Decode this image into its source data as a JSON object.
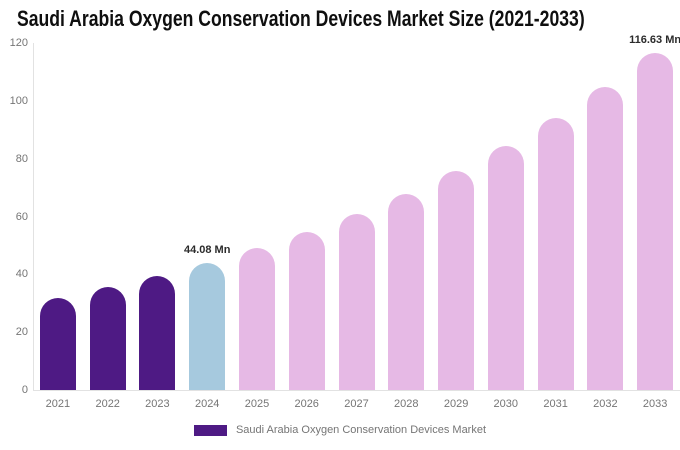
{
  "title": "Saudi Arabia Oxygen Conservation Devices Market Size (2021-2033)",
  "chart_data": {
    "type": "bar",
    "categories": [
      "2021",
      "2022",
      "2023",
      "2024",
      "2025",
      "2026",
      "2027",
      "2028",
      "2029",
      "2030",
      "2031",
      "2032",
      "2033"
    ],
    "series": [
      {
        "name": "Saudi Arabia Oxygen Conservation Devices Market",
        "values": [
          31.87,
          35.51,
          39.56,
          44.08,
          49.11,
          54.72,
          60.97,
          67.93,
          75.69,
          84.33,
          93.96,
          104.69,
          116.63
        ]
      }
    ],
    "unit": "Mn",
    "ylim": [
      0,
      120
    ],
    "yticks": [
      0,
      20,
      40,
      60,
      80,
      100,
      120
    ],
    "grid": false,
    "legend_position": "bottom",
    "bar_roles": [
      "historical",
      "historical",
      "historical",
      "current",
      "forecast",
      "forecast",
      "forecast",
      "forecast",
      "forecast",
      "forecast",
      "forecast",
      "forecast",
      "forecast"
    ],
    "colors": {
      "historical": "#4e1a84",
      "current": "#a6c9de",
      "forecast": "#e6b9e5"
    },
    "annotations": [
      {
        "category": "2024",
        "text": "44.08 Mn"
      },
      {
        "category": "2033",
        "text": "116.63 Mn"
      }
    ]
  },
  "legend": {
    "swatch_color": "#4e1a84",
    "label": "Saudi Arabia Oxygen Conservation Devices Market"
  }
}
